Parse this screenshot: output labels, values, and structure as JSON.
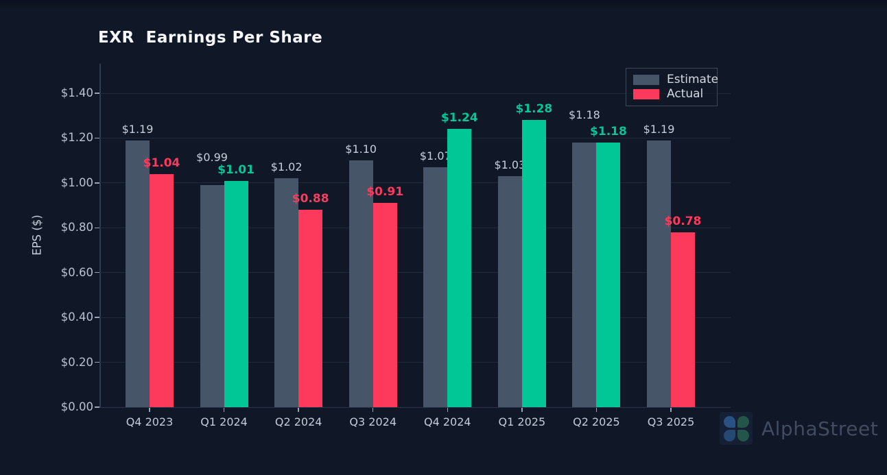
{
  "watermark": {
    "text": "AlphaStreet"
  },
  "chart_data": {
    "type": "bar",
    "title": "EXR  Earnings Per Share",
    "ylabel": "EPS ($)",
    "categories": [
      "Q4 2023",
      "Q1 2024",
      "Q2 2024",
      "Q3 2024",
      "Q4 2024",
      "Q1 2025",
      "Q2 2025",
      "Q3 2025"
    ],
    "series": [
      {
        "name": "Estimate",
        "color": "#475569",
        "values": [
          1.19,
          0.99,
          1.02,
          1.1,
          1.07,
          1.03,
          1.18,
          1.19
        ],
        "labels": [
          "$1.19",
          "$0.99",
          "$1.02",
          "$1.10",
          "$1.07",
          "$1.03",
          "$1.18",
          "$1.19"
        ]
      },
      {
        "name": "Actual",
        "values": [
          1.04,
          1.01,
          0.88,
          0.91,
          1.24,
          1.28,
          1.18,
          0.78
        ],
        "labels": [
          "$1.04",
          "$1.01",
          "$0.88",
          "$0.91",
          "$1.24",
          "$1.28",
          "$1.18",
          "$0.78"
        ]
      }
    ],
    "colors": {
      "estimate": "#475569",
      "actual_beat": "#00c795",
      "actual_miss": "#fd3a5c",
      "estimate_label": "#c7cfdc"
    },
    "yticks": [
      0.0,
      0.2,
      0.4,
      0.6,
      0.8,
      1.0,
      1.2,
      1.4
    ],
    "ytick_labels": [
      "$0.00",
      "$0.20",
      "$0.40",
      "$0.60",
      "$0.80",
      "$1.00",
      "$1.20",
      "$1.40"
    ],
    "ylim": [
      0,
      1.53
    ],
    "grid": true,
    "legend_position": "top-right"
  }
}
